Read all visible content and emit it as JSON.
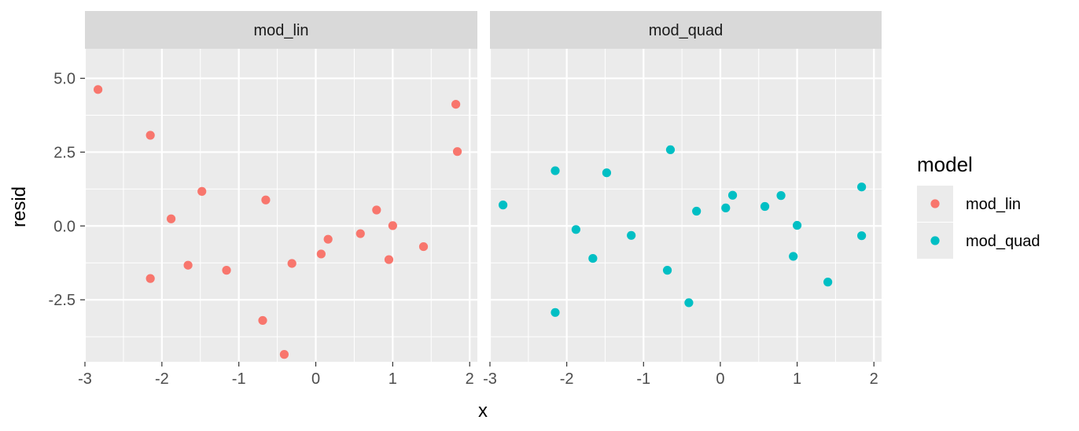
{
  "chart_data": {
    "type": "scatter",
    "xlabel": "x",
    "ylabel": "resid",
    "xlim": [
      -3.0,
      2.1
    ],
    "ylim": [
      -4.6,
      6.0
    ],
    "x_ticks": [
      -3,
      -2,
      -1,
      0,
      1,
      2
    ],
    "x_tick_labels": [
      "-3",
      "-2",
      "-1",
      "0",
      "1",
      "2"
    ],
    "y_ticks": [
      5.0,
      2.5,
      0.0,
      -2.5
    ],
    "y_tick_labels": [
      "5.0",
      "2.5",
      "0.0",
      "-2.5"
    ],
    "grid": true,
    "legend": {
      "title": "model",
      "placement": "right",
      "entries": [
        {
          "label": "mod_lin",
          "color": "#F8766D"
        },
        {
          "label": "mod_quad",
          "color": "#00BFC4"
        }
      ]
    },
    "panels": [
      {
        "strip": "mod_lin",
        "color": "#F8766D",
        "points": [
          {
            "x": -2.83,
            "y": 4.62
          },
          {
            "x": -2.15,
            "y": 3.07
          },
          {
            "x": -1.48,
            "y": 1.17
          },
          {
            "x": -1.88,
            "y": 0.24
          },
          {
            "x": -0.65,
            "y": 0.88
          },
          {
            "x": 0.79,
            "y": 0.54
          },
          {
            "x": 1.0,
            "y": 0.01
          },
          {
            "x": 1.82,
            "y": 4.12
          },
          {
            "x": 1.84,
            "y": 2.52
          },
          {
            "x": -2.15,
            "y": -1.78
          },
          {
            "x": -1.66,
            "y": -1.33
          },
          {
            "x": -1.16,
            "y": -1.5
          },
          {
            "x": -0.31,
            "y": -1.27
          },
          {
            "x": 0.07,
            "y": -0.95
          },
          {
            "x": 0.16,
            "y": -0.45
          },
          {
            "x": 0.58,
            "y": -0.26
          },
          {
            "x": 0.95,
            "y": -1.14
          },
          {
            "x": 1.4,
            "y": -0.7
          },
          {
            "x": -0.69,
            "y": -3.2
          },
          {
            "x": -0.41,
            "y": -4.35
          }
        ]
      },
      {
        "strip": "mod_quad",
        "color": "#00BFC4",
        "points": [
          {
            "x": -2.83,
            "y": 0.71
          },
          {
            "x": -2.15,
            "y": 1.87
          },
          {
            "x": -1.48,
            "y": 1.8
          },
          {
            "x": -0.65,
            "y": 2.58
          },
          {
            "x": -0.31,
            "y": 0.5
          },
          {
            "x": 0.07,
            "y": 0.61
          },
          {
            "x": 0.16,
            "y": 1.04
          },
          {
            "x": 0.58,
            "y": 0.66
          },
          {
            "x": 0.79,
            "y": 1.03
          },
          {
            "x": 1.0,
            "y": 0.02
          },
          {
            "x": 1.84,
            "y": 1.32
          },
          {
            "x": -1.88,
            "y": -0.12
          },
          {
            "x": -1.66,
            "y": -1.1
          },
          {
            "x": -1.16,
            "y": -0.32
          },
          {
            "x": -0.69,
            "y": -1.5
          },
          {
            "x": -0.41,
            "y": -2.6
          },
          {
            "x": -2.15,
            "y": -2.93
          },
          {
            "x": 0.95,
            "y": -1.03
          },
          {
            "x": 1.4,
            "y": -1.9
          },
          {
            "x": 1.84,
            "y": -0.33
          }
        ]
      }
    ]
  }
}
